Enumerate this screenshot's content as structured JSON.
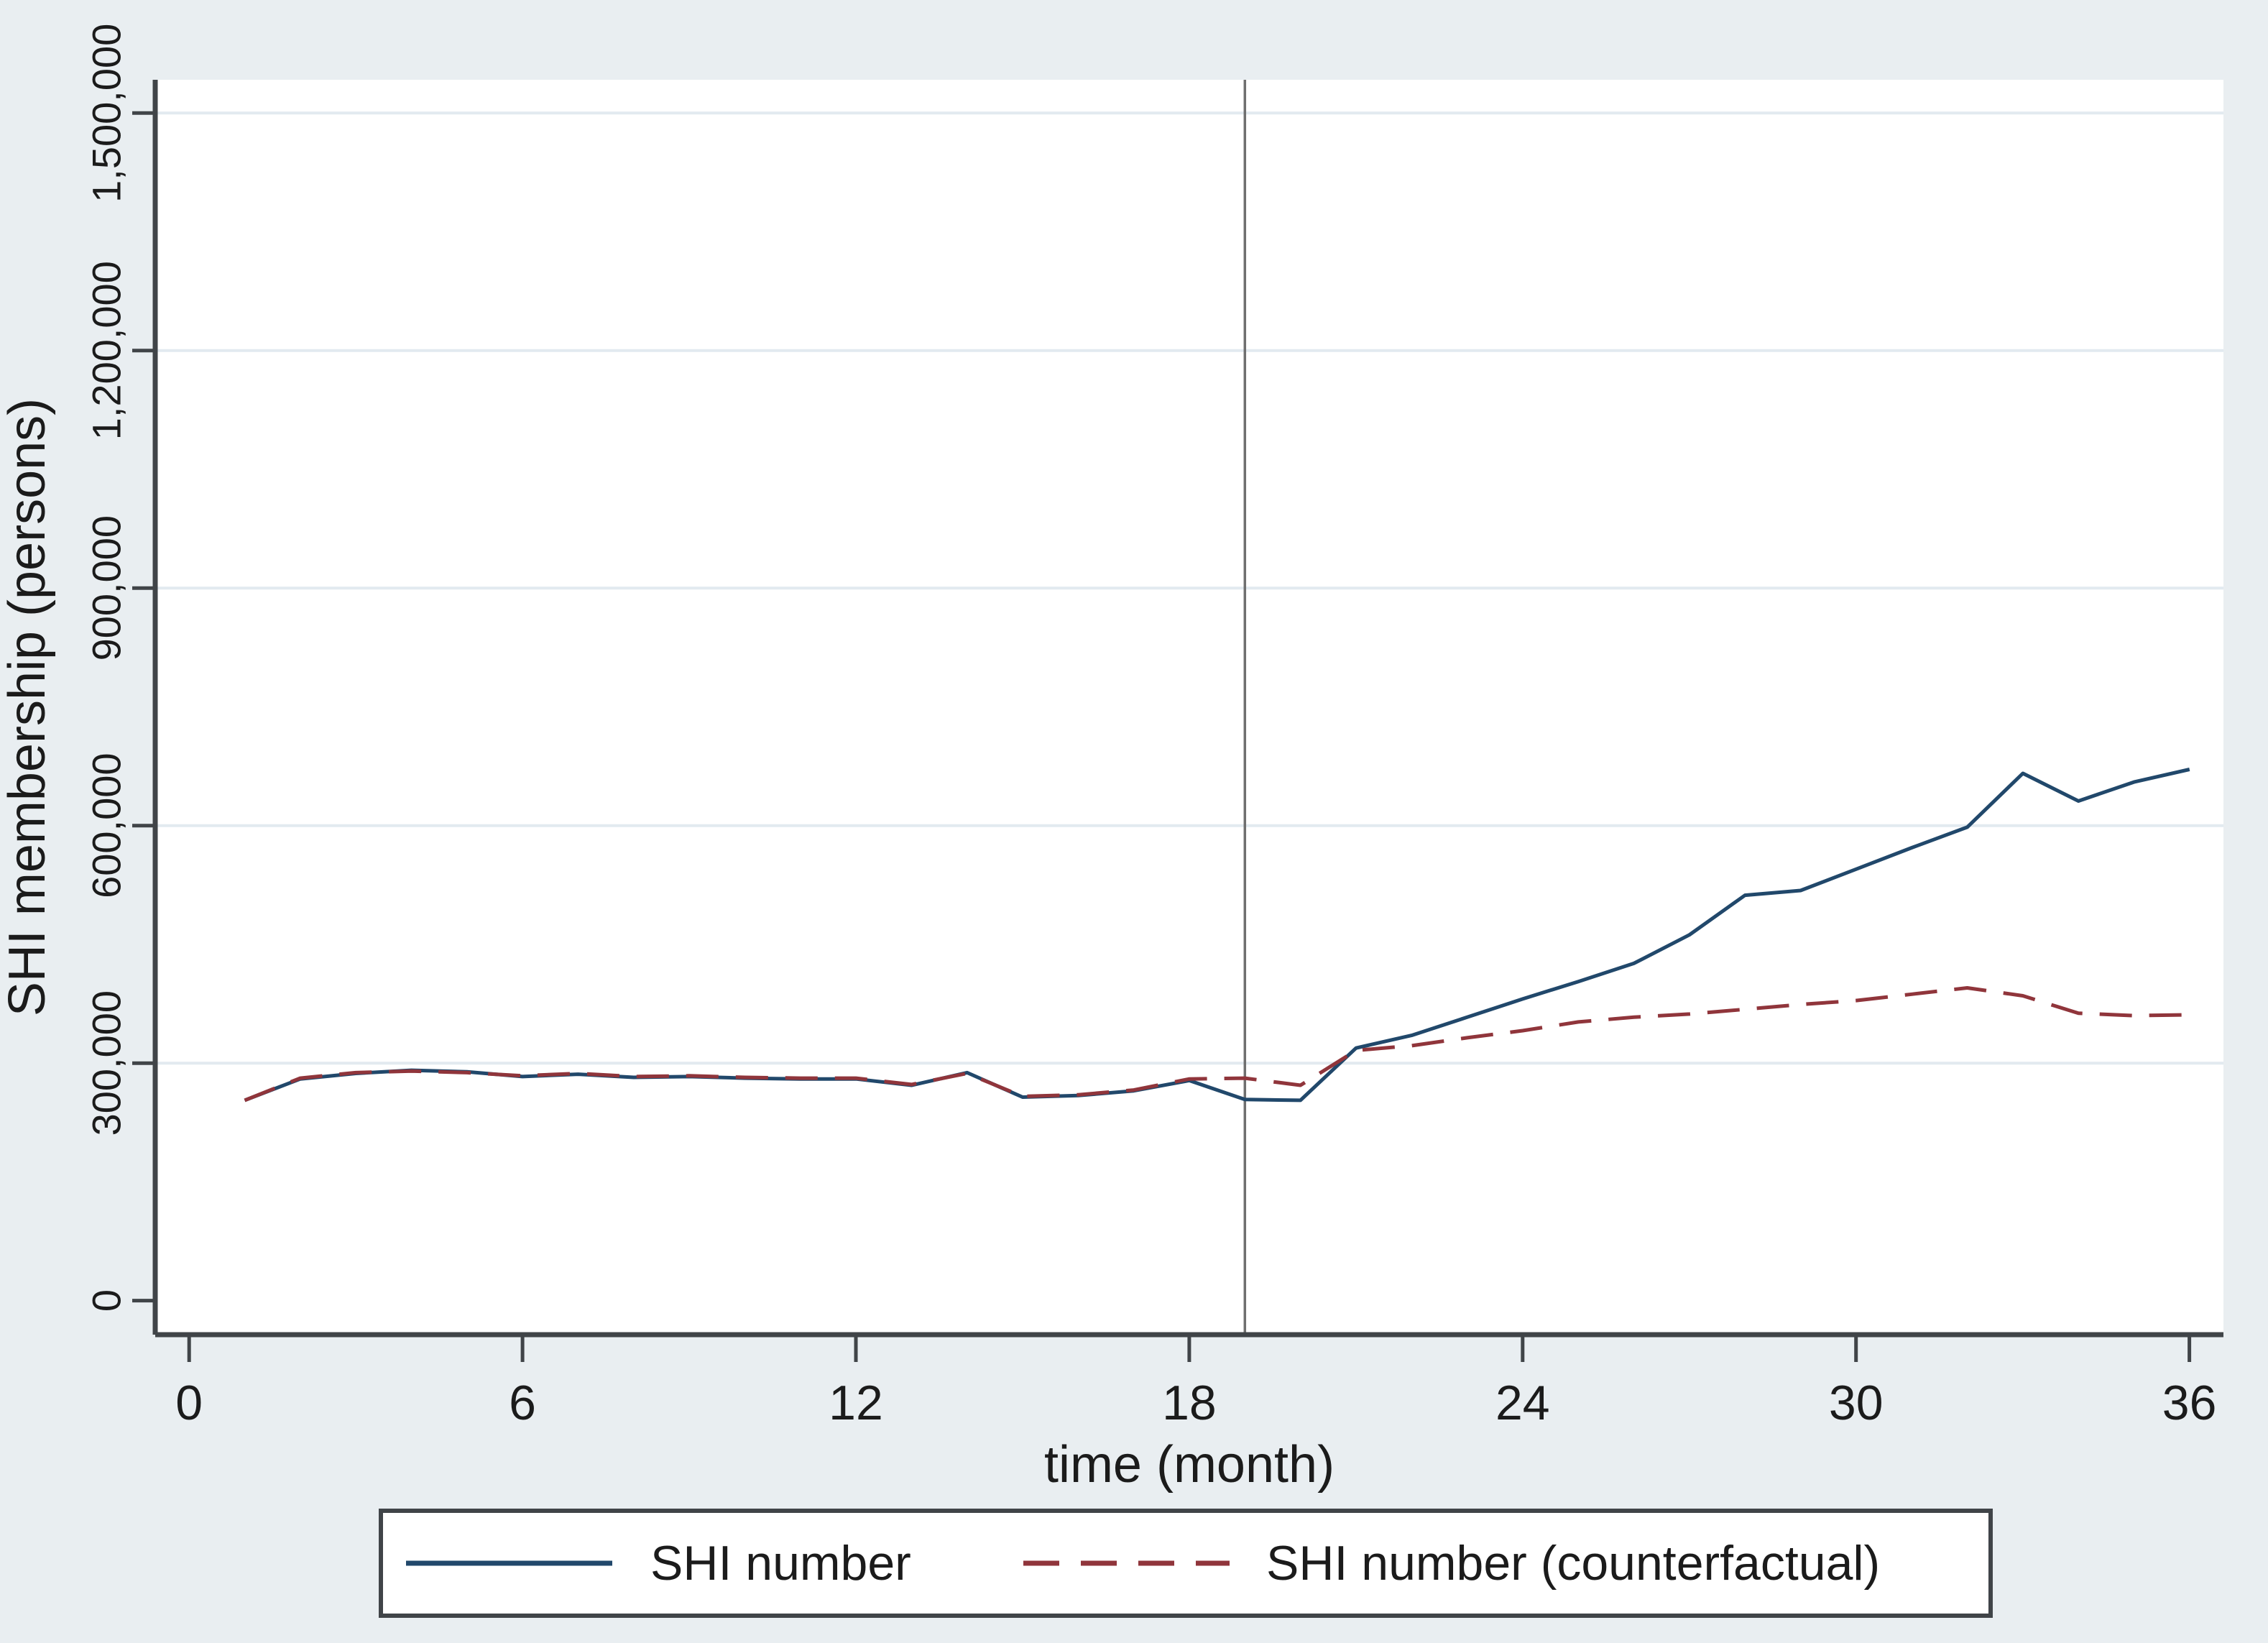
{
  "figure": {
    "background_color": "#e9eef1",
    "plot_background_color": "#ffffff"
  },
  "axes": {
    "y": {
      "title": "SHI membership (persons)",
      "tick_labels": [
        "0",
        "300,000",
        "600,000",
        "900,000",
        "1,200,000",
        "1,500,000"
      ],
      "tick_values": [
        0,
        300000,
        600000,
        900000,
        1200000,
        1500000
      ]
    },
    "x": {
      "title": "time (month)",
      "tick_labels": [
        "0",
        "6",
        "12",
        "18",
        "24",
        "30",
        "36"
      ],
      "tick_values": [
        0,
        6,
        12,
        18,
        24,
        30,
        36
      ]
    }
  },
  "legend": {
    "entries": [
      {
        "label": "SHI number"
      },
      {
        "label": "SHI number (counterfactual)"
      }
    ]
  },
  "chart_data": {
    "type": "line",
    "title": "",
    "xlabel": "time (month)",
    "ylabel": "SHI membership (persons)",
    "xlim": [
      -0.61,
      36.61
    ],
    "ylim": [
      -43000,
      1542000
    ],
    "grid": "horizontal",
    "gridline_values": [
      300000,
      600000,
      900000,
      1200000,
      1500000
    ],
    "legend_position": "bottom",
    "vline_x": 19,
    "vline_color": "#6f6f6f",
    "x": [
      1,
      2,
      3,
      4,
      5,
      6,
      7,
      8,
      9,
      10,
      11,
      12,
      13,
      14,
      15,
      16,
      17,
      18,
      19,
      20,
      21,
      22,
      23,
      24,
      25,
      26,
      27,
      28,
      29,
      30,
      31,
      32,
      33,
      34,
      35,
      36
    ],
    "series": [
      {
        "name": "SHI number",
        "color": "#21486b",
        "style": "solid",
        "values": [
          253000,
          280000,
          287000,
          291000,
          289000,
          283000,
          286000,
          282000,
          283000,
          281000,
          280000,
          280000,
          272000,
          288000,
          257000,
          259000,
          265000,
          278000,
          254000,
          253000,
          319000,
          335000,
          358000,
          381000,
          403000,
          426000,
          462000,
          512000,
          518000,
          545000,
          572000,
          598000,
          666000,
          631000,
          655000,
          671000
        ]
      },
      {
        "name": "SHI number (counterfactual)",
        "color": "#90353b",
        "style": "dashed",
        "dash": [
          45,
          24
        ],
        "values": [
          253000,
          281000,
          288000,
          290000,
          288000,
          284000,
          287000,
          283000,
          284000,
          282000,
          281000,
          281000,
          273000,
          287000,
          258000,
          260000,
          266000,
          280000,
          281000,
          272000,
          316000,
          322000,
          332000,
          341000,
          352000,
          358000,
          362000,
          368000,
          374000,
          379000,
          387000,
          395000,
          385000,
          363000,
          360000,
          361000
        ]
      }
    ]
  }
}
